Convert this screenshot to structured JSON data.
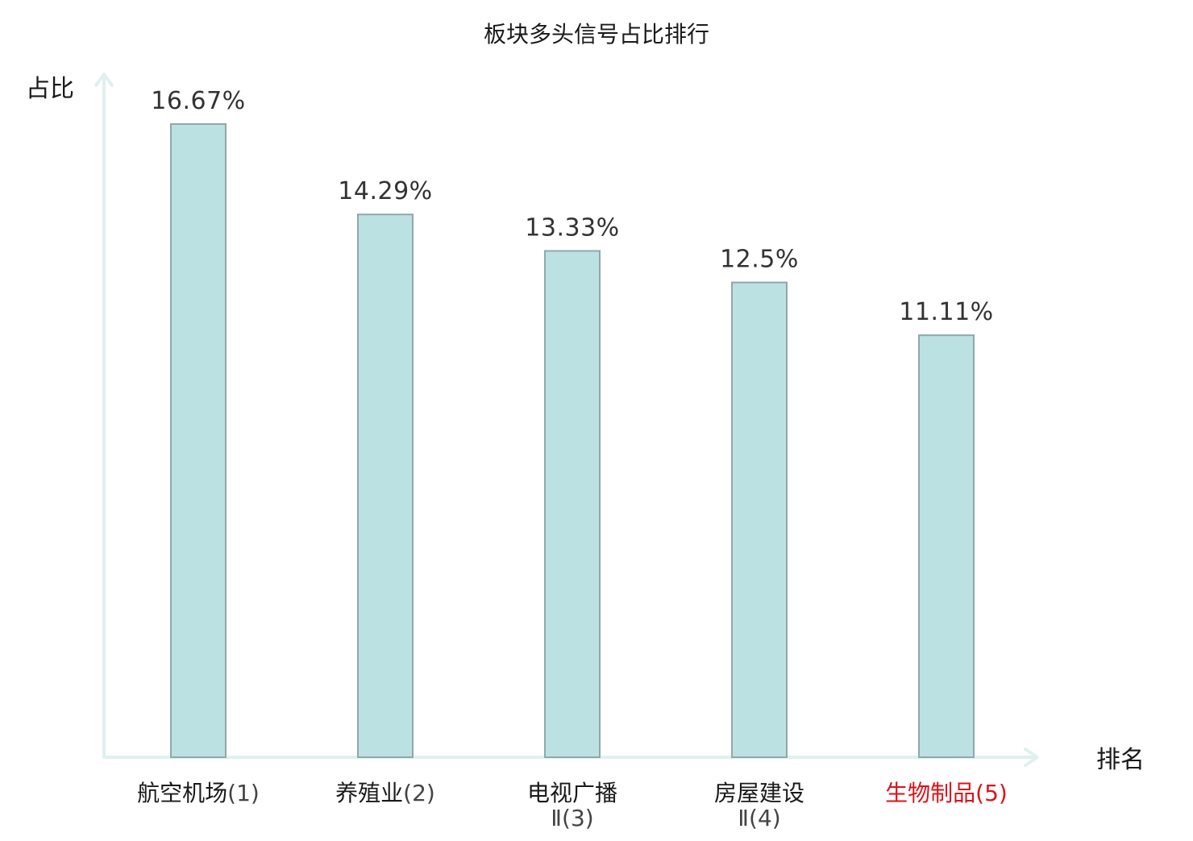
{
  "chart_data": {
    "type": "bar",
    "title": "板块多头信号占比排行",
    "ylabel": "占比",
    "xlabel": "排名",
    "categories": [
      {
        "name": "航空机场",
        "subname": "",
        "rank": "(1)",
        "highlight": false
      },
      {
        "name": "养殖业",
        "subname": "",
        "rank": "(2)",
        "highlight": false
      },
      {
        "name": "电视广播",
        "subname": "Ⅱ",
        "rank": "(3)",
        "highlight": false
      },
      {
        "name": "房屋建设",
        "subname": "Ⅱ",
        "rank": "(4)",
        "highlight": false
      },
      {
        "name": "生物制品",
        "subname": "",
        "rank": "(5)",
        "highlight": true
      }
    ],
    "values": [
      16.67,
      14.29,
      13.33,
      12.5,
      11.11
    ],
    "value_labels": [
      "16.67%",
      "14.29%",
      "13.33%",
      "12.5%",
      "11.11%"
    ],
    "ylim": [
      0,
      16.67
    ],
    "grid": false,
    "legend": "none",
    "colors": {
      "bar_fill": "#bce1e2",
      "bar_stroke": "#8fa9a9",
      "axis": "#dff1ef",
      "highlight": "#d9141b"
    }
  }
}
